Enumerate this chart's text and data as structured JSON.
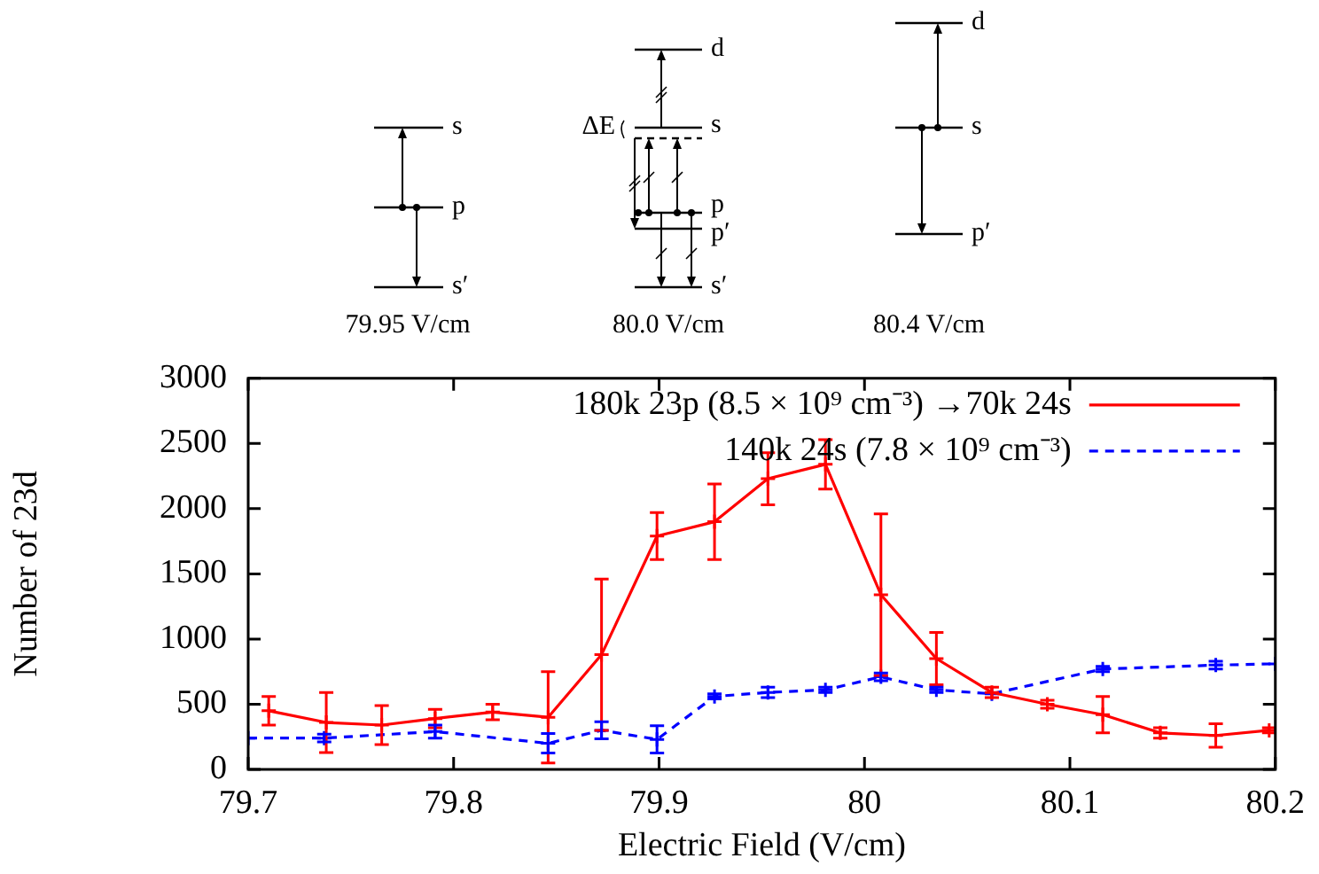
{
  "chart_data": {
    "type": "line",
    "xlabel": "Electric Field (V/cm)",
    "ylabel": "Number of 23$_{}$d",
    "xlim": [
      79.7,
      80.2
    ],
    "xticks": [
      79.7,
      79.8,
      79.9,
      80,
      80.1,
      80.2
    ],
    "ylim": [
      0,
      3000
    ],
    "yticks": [
      0,
      500,
      1000,
      1500,
      2000,
      2500,
      3000
    ],
    "legend": "top right",
    "annotations": [
      "79.95 V/cm",
      "80.0 V/cm",
      "80.4 V/cm",
      "s",
      "p",
      "s′",
      "d",
      "s",
      "ΔE",
      "p",
      "p′",
      "s′",
      "d",
      "s",
      "p′"
    ],
    "series": [
      {
        "name": "180k 23p (8.5 × 10⁹ cm⁻³) →70k 24s",
        "color": "#ff0000",
        "marker": "cross",
        "line_style": "solid",
        "x": [
          79.71,
          79.738,
          79.765,
          79.791,
          79.819,
          79.846,
          79.872,
          79.899,
          79.927,
          79.953,
          79.981,
          80.008,
          80.035,
          80.062,
          80.089,
          80.116,
          80.144,
          80.171,
          80.197
        ],
        "values": [
          450,
          360,
          340,
          390,
          440,
          400,
          880,
          1790,
          1900,
          2230,
          2340,
          1340,
          850,
          590,
          500,
          420,
          280,
          260,
          300
        ],
        "errors": [
          110,
          230,
          150,
          70,
          60,
          350,
          580,
          180,
          290,
          200,
          190,
          620,
          200,
          40,
          30,
          140,
          40,
          90,
          20
        ]
      },
      {
        "name": "140k 24s (7.8 × 10⁹ cm⁻³)",
        "color": "#0000ff",
        "marker": "cross",
        "line_style": "dashed",
        "x": [
          79.7,
          79.737,
          79.791,
          79.846,
          79.872,
          79.899,
          79.927,
          79.953,
          79.981,
          80.008,
          80.035,
          80.062,
          80.116,
          80.171,
          80.2
        ],
        "values": [
          240,
          240,
          290,
          200,
          300,
          230,
          560,
          590,
          610,
          710,
          610,
          580,
          770,
          800,
          810
        ],
        "errors": [
          null,
          30,
          50,
          75,
          65,
          105,
          20,
          40,
          20,
          30,
          20,
          null,
          20,
          30,
          null
        ]
      }
    ]
  }
}
